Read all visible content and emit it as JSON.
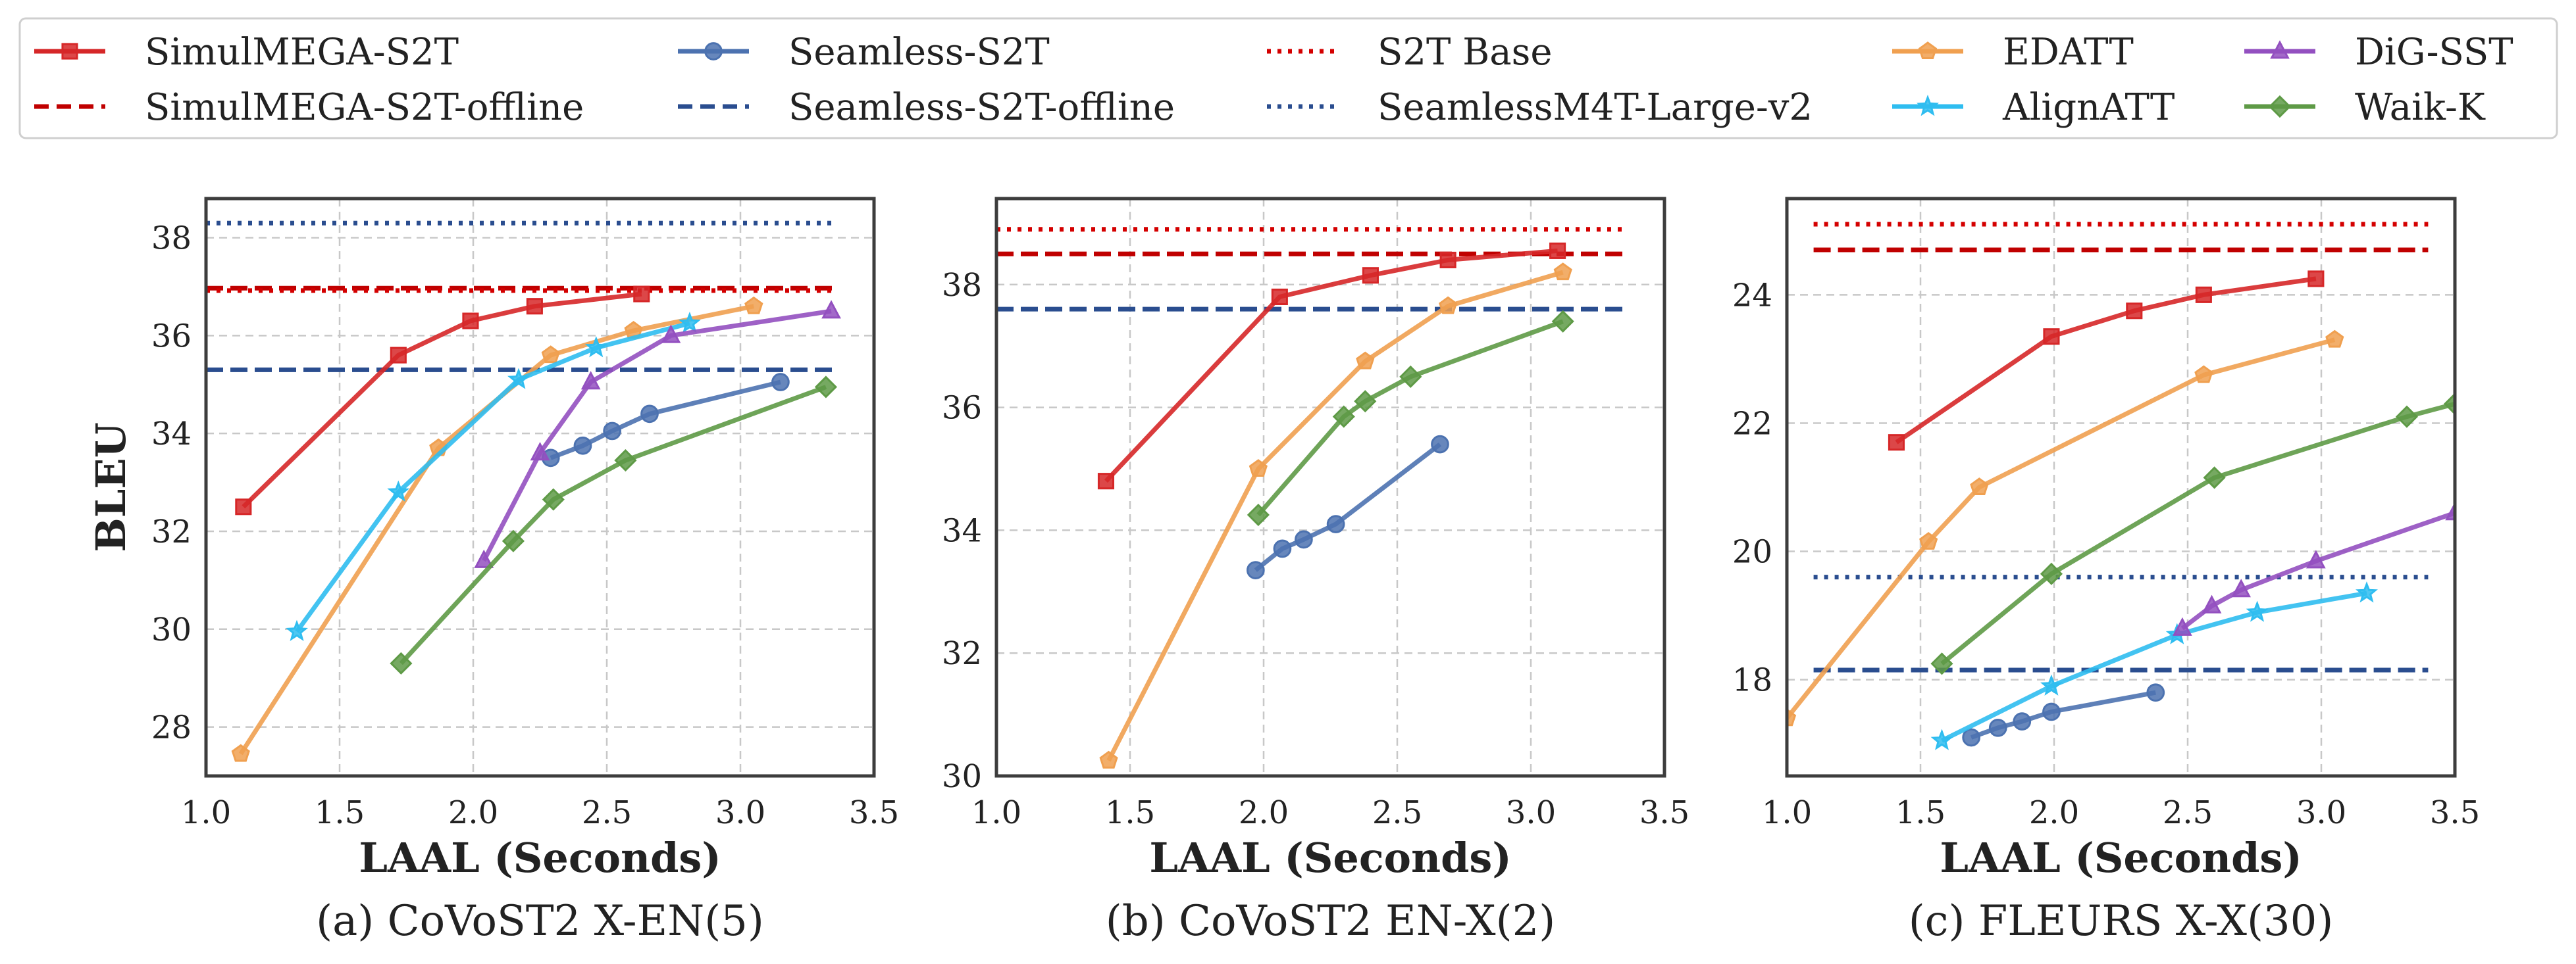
{
  "legend": [
    {
      "label": "SimulMEGA-S2T",
      "color": "#d62728",
      "marker": "square",
      "line": "solid"
    },
    {
      "label": "SimulMEGA-S2T-offline",
      "color": "#c00000",
      "marker": "none",
      "line": "dashed"
    },
    {
      "label": "Seamless-S2T",
      "color": "#4c72b0",
      "marker": "circle",
      "line": "solid"
    },
    {
      "label": "Seamless-S2T-offline",
      "color": "#2a4d8f",
      "marker": "none",
      "line": "dashed"
    },
    {
      "label": "S2T Base",
      "color": "#d40000",
      "marker": "none",
      "line": "dotted"
    },
    {
      "label": "SeamlessM4T-Large-v2",
      "color": "#2a4d8f",
      "marker": "none",
      "line": "dotted"
    },
    {
      "label": "EDATT",
      "color": "#f0a050",
      "marker": "pentagon",
      "line": "solid"
    },
    {
      "label": "AlignATT",
      "color": "#2fbdf0",
      "marker": "star",
      "line": "solid"
    },
    {
      "label": "DiG-SST",
      "color": "#9350c0",
      "marker": "triangle",
      "line": "solid"
    },
    {
      "label": "Waik-K",
      "color": "#5e9a46",
      "marker": "diamond",
      "line": "solid"
    }
  ],
  "chart_data": [
    {
      "type": "line",
      "caption": "(a) CoVoST2 X-EN(5)",
      "xlabel": "LAAL (Seconds)",
      "ylabel": "BLEU",
      "xlim": [
        1.0,
        3.5
      ],
      "ylim": [
        27.0,
        38.8
      ],
      "xticks": [
        1.0,
        1.5,
        2.0,
        2.5,
        3.0,
        3.5
      ],
      "yticks": [
        28,
        30,
        32,
        34,
        36,
        38
      ],
      "series": [
        {
          "name": "SimulMEGA-S2T",
          "x": [
            1.14,
            1.72,
            1.99,
            2.23,
            2.63
          ],
          "y": [
            32.5,
            35.6,
            36.3,
            36.6,
            36.85
          ]
        },
        {
          "name": "Seamless-S2T",
          "x": [
            2.29,
            2.41,
            2.52,
            2.66,
            3.15
          ],
          "y": [
            33.5,
            33.75,
            34.05,
            34.4,
            35.05
          ]
        },
        {
          "name": "EDATT",
          "x": [
            1.13,
            1.87,
            2.29,
            2.6,
            3.05
          ],
          "y": [
            27.45,
            33.7,
            35.6,
            36.1,
            36.6
          ]
        },
        {
          "name": "AlignATT",
          "x": [
            1.34,
            1.72,
            2.17,
            2.46,
            2.81
          ],
          "y": [
            29.95,
            32.8,
            35.1,
            35.75,
            36.25
          ]
        },
        {
          "name": "DiG-SST",
          "x": [
            2.04,
            2.25,
            2.44,
            2.74,
            3.34
          ],
          "y": [
            31.4,
            33.6,
            35.05,
            36.0,
            36.5
          ]
        },
        {
          "name": "Waik-K",
          "x": [
            1.73,
            2.15,
            2.3,
            2.57,
            3.32
          ],
          "y": [
            29.3,
            31.8,
            32.65,
            33.45,
            34.95
          ]
        },
        {
          "name": "SimulMEGA-S2T-offline",
          "x": [
            1.0,
            3.35
          ],
          "y": [
            36.97,
            36.97
          ]
        },
        {
          "name": "Seamless-S2T-offline",
          "x": [
            1.0,
            3.35
          ],
          "y": [
            35.3,
            35.3
          ]
        },
        {
          "name": "SeamlessM4T-Large-v2",
          "x": [
            1.0,
            3.35
          ],
          "y": [
            38.3,
            38.3
          ]
        },
        {
          "name": "S2T Base",
          "x": [
            1.0,
            3.35
          ],
          "y": [
            36.92,
            36.92
          ]
        }
      ]
    },
    {
      "type": "line",
      "caption": "(b) CoVoST2 EN-X(2)",
      "xlabel": "LAAL (Seconds)",
      "ylabel": "",
      "xlim": [
        1.0,
        3.5
      ],
      "ylim": [
        30.0,
        39.4
      ],
      "xticks": [
        1.0,
        1.5,
        2.0,
        2.5,
        3.0,
        3.5
      ],
      "yticks": [
        30,
        32,
        34,
        36,
        38
      ],
      "series": [
        {
          "name": "SimulMEGA-S2T",
          "x": [
            1.41,
            2.06,
            2.4,
            2.69,
            3.1
          ],
          "y": [
            34.8,
            37.8,
            38.15,
            38.4,
            38.55
          ]
        },
        {
          "name": "Seamless-S2T",
          "x": [
            1.97,
            2.07,
            2.15,
            2.27,
            2.66
          ],
          "y": [
            33.35,
            33.7,
            33.85,
            34.1,
            35.4
          ]
        },
        {
          "name": "EDATT",
          "x": [
            1.42,
            1.98,
            2.38,
            2.69,
            3.12
          ],
          "y": [
            30.25,
            35.0,
            36.75,
            37.65,
            38.2
          ]
        },
        {
          "name": "Waik-K",
          "x": [
            1.98,
            2.3,
            2.38,
            2.55,
            3.12
          ],
          "y": [
            34.25,
            35.85,
            36.1,
            36.5,
            37.4
          ]
        },
        {
          "name": "SimulMEGA-S2T-offline",
          "x": [
            1.0,
            3.35
          ],
          "y": [
            38.5,
            38.5
          ]
        },
        {
          "name": "Seamless-S2T-offline",
          "x": [
            1.0,
            3.35
          ],
          "y": [
            37.6,
            37.6
          ]
        },
        {
          "name": "S2T Base",
          "x": [
            1.0,
            3.35
          ],
          "y": [
            38.9,
            38.9
          ]
        }
      ]
    },
    {
      "type": "line",
      "caption": "(c) FLEURS X-X(30)",
      "xlabel": "LAAL (Seconds)",
      "ylabel": "",
      "xlim": [
        1.0,
        3.5
      ],
      "ylim": [
        16.5,
        25.5
      ],
      "xticks": [
        1.0,
        1.5,
        2.0,
        2.5,
        3.0,
        3.5
      ],
      "yticks": [
        18,
        20,
        22,
        24
      ],
      "series": [
        {
          "name": "SimulMEGA-S2T",
          "x": [
            1.41,
            1.99,
            2.3,
            2.56,
            2.98
          ],
          "y": [
            21.7,
            23.35,
            23.75,
            24.0,
            24.25
          ]
        },
        {
          "name": "Seamless-S2T",
          "x": [
            1.69,
            1.79,
            1.88,
            1.99,
            2.38
          ],
          "y": [
            17.1,
            17.25,
            17.35,
            17.5,
            17.8
          ]
        },
        {
          "name": "EDATT",
          "x": [
            1.0,
            1.53,
            1.72,
            2.56,
            3.05
          ],
          "y": [
            17.4,
            20.15,
            21.0,
            22.75,
            23.3
          ]
        },
        {
          "name": "AlignATT",
          "x": [
            1.58,
            1.99,
            2.46,
            2.76,
            3.17
          ],
          "y": [
            17.05,
            17.9,
            18.7,
            19.05,
            19.35
          ]
        },
        {
          "name": "DiG-SST",
          "x": [
            2.48,
            2.59,
            2.7,
            2.98,
            3.5
          ],
          "y": [
            18.8,
            19.15,
            19.4,
            19.85,
            20.6
          ]
        },
        {
          "name": "Waik-K",
          "x": [
            1.58,
            1.99,
            2.6,
            3.32,
            3.5
          ],
          "y": [
            18.25,
            19.65,
            21.15,
            22.1,
            22.3
          ]
        },
        {
          "name": "SimulMEGA-S2T-offline",
          "x": [
            1.1,
            3.4
          ],
          "y": [
            24.7,
            24.7
          ]
        },
        {
          "name": "Seamless-S2T-offline",
          "x": [
            1.1,
            3.4
          ],
          "y": [
            18.15,
            18.15
          ]
        },
        {
          "name": "SeamlessM4T-Large-v2",
          "x": [
            1.1,
            3.4
          ],
          "y": [
            19.6,
            19.6
          ]
        },
        {
          "name": "S2T Base",
          "x": [
            1.1,
            3.4
          ],
          "y": [
            25.1,
            25.1
          ]
        }
      ]
    }
  ]
}
